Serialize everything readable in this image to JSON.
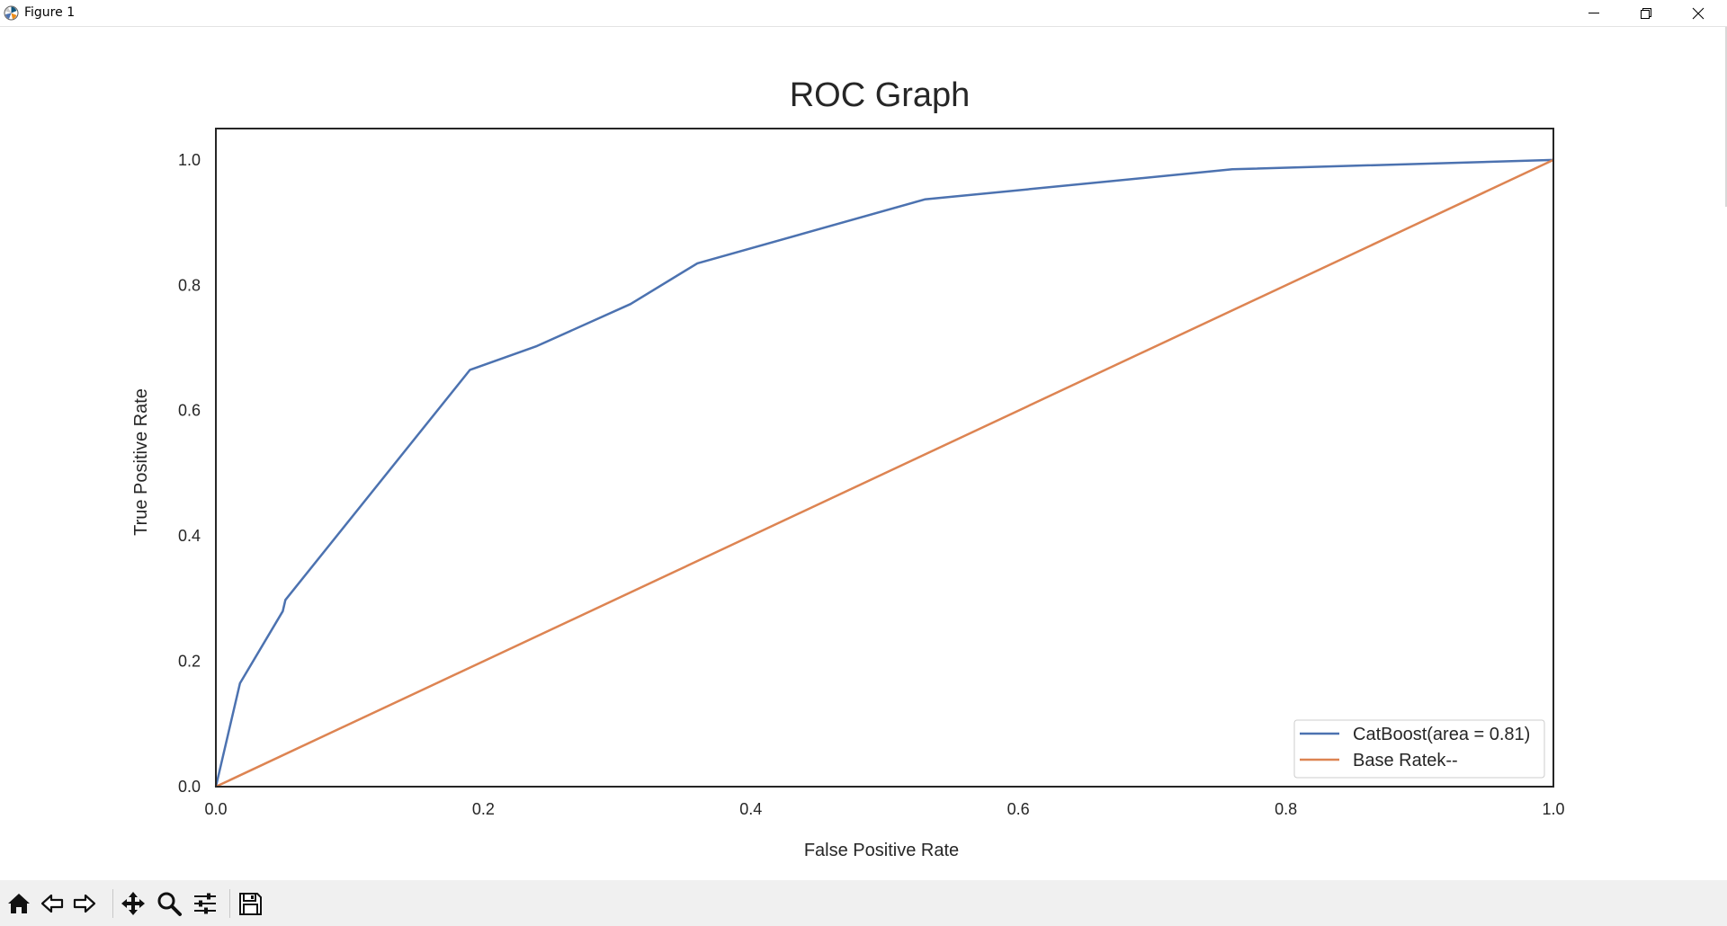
{
  "window": {
    "title": "Figure 1"
  },
  "toolbar": {
    "buttons": [
      "home-icon",
      "back-arrow-icon",
      "forward-arrow-icon",
      "pan-icon",
      "zoom-icon",
      "configure-subplots-icon",
      "save-icon"
    ]
  },
  "chart_data": {
    "type": "line",
    "title": "ROC Graph",
    "xlabel": "False Positive Rate",
    "ylabel": "True Positive Rate",
    "xlim": [
      0.0,
      1.0
    ],
    "ylim": [
      0.0,
      1.05
    ],
    "x_ticks": [
      "0.0",
      "0.2",
      "0.4",
      "0.6",
      "0.8",
      "1.0"
    ],
    "y_ticks": [
      "0.0",
      "0.2",
      "0.4",
      "0.6",
      "0.8",
      "1.0"
    ],
    "grid": false,
    "legend_position": "lower-right",
    "series": [
      {
        "name": "CatBoost(area = 0.81)",
        "color": "#4c72b0",
        "x": [
          0.0,
          0.018,
          0.05,
          0.052,
          0.19,
          0.24,
          0.31,
          0.36,
          0.53,
          0.76,
          1.0
        ],
        "y": [
          0.0,
          0.165,
          0.28,
          0.298,
          0.665,
          0.703,
          0.77,
          0.835,
          0.937,
          0.985,
          1.0
        ]
      },
      {
        "name": "Base Ratek--",
        "color": "#dd8452",
        "x": [
          0.0,
          1.0
        ],
        "y": [
          0.0,
          1.0
        ]
      }
    ]
  }
}
